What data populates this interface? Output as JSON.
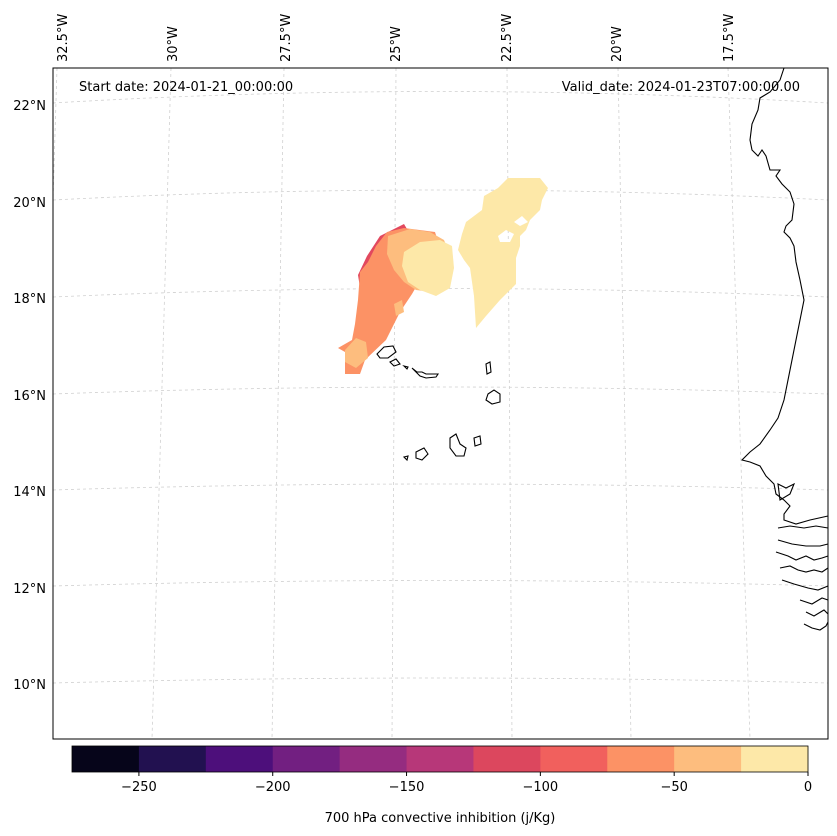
{
  "map": {
    "start_date": "Start date: 2024-01-21_00:00:00",
    "valid_date": "Valid_date: 2024-01-23T07:00:00.00",
    "lon_labels": [
      "32.5°W",
      "30°W",
      "27.5°W",
      "25°W",
      "22.5°W",
      "20°W",
      "17.5°W"
    ],
    "lat_labels": [
      "22°N",
      "20°N",
      "18°N",
      "16°N",
      "14°N",
      "12°N",
      "10°N"
    ],
    "colors": {
      "coastline": "#000000",
      "gridline": "#cccccc",
      "frame": "#000000"
    },
    "fields": {
      "cin_0_to_-25": "#fde8a8",
      "cin_-25_to_-50": "#fdbd7e",
      "cin_-50_to_-75": "#fc9265",
      "cin_-100_to_-125": "#e2485e"
    }
  },
  "colorbar": {
    "label": "700 hPa convective inhibition (j/Kg)",
    "ticks": [
      "−250",
      "−200",
      "−150",
      "−100",
      "−50",
      "0"
    ],
    "tick_values": [
      -250,
      -200,
      -150,
      -100,
      -50,
      0
    ],
    "range": [
      -275,
      0
    ],
    "colors": [
      "#06051a",
      "#221150",
      "#4d0f7b",
      "#721f81",
      "#952c80",
      "#b73779",
      "#dc475e",
      "#f1605d",
      "#fc9265",
      "#fdbd7e",
      "#fde8a8"
    ]
  }
}
